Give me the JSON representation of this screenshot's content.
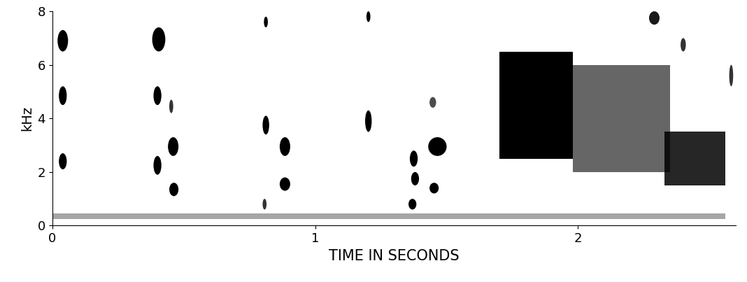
{
  "chart_data": {
    "type": "spectrogram",
    "x_label": "TIME IN SECONDS",
    "y_label": "kHz",
    "xlim": [
      0,
      2.6
    ],
    "xticks": [
      0,
      1,
      2
    ],
    "ylim": [
      0,
      8
    ],
    "yticks": [
      0,
      2,
      4,
      6,
      8
    ],
    "color": "#000000",
    "grid": false,
    "events": [
      {
        "shape": "blob",
        "t0": 0.02,
        "t1": 0.06,
        "f0": 6.5,
        "f1": 7.3,
        "level": 1.0
      },
      {
        "shape": "blob",
        "t0": 0.025,
        "t1": 0.055,
        "f0": 4.5,
        "f1": 5.2,
        "level": 1.0
      },
      {
        "shape": "blob",
        "t0": 0.025,
        "t1": 0.055,
        "f0": 2.1,
        "f1": 2.7,
        "level": 1.0
      },
      {
        "shape": "blob",
        "t0": 0.38,
        "t1": 0.43,
        "f0": 6.5,
        "f1": 7.4,
        "level": 1.0
      },
      {
        "shape": "blob",
        "t0": 0.385,
        "t1": 0.415,
        "f0": 4.5,
        "f1": 5.2,
        "level": 1.0
      },
      {
        "shape": "blob",
        "t0": 0.385,
        "t1": 0.415,
        "f0": 1.9,
        "f1": 2.6,
        "level": 1.0
      },
      {
        "shape": "blob",
        "t0": 0.44,
        "t1": 0.48,
        "f0": 2.6,
        "f1": 3.3,
        "level": 1.0
      },
      {
        "shape": "blob",
        "t0": 0.445,
        "t1": 0.48,
        "f0": 1.1,
        "f1": 1.6,
        "level": 1.0
      },
      {
        "shape": "blob",
        "t0": 0.445,
        "t1": 0.46,
        "f0": 4.2,
        "f1": 4.7,
        "level": 0.8
      },
      {
        "shape": "blob",
        "t0": 0.805,
        "t1": 0.82,
        "f0": 7.4,
        "f1": 7.8,
        "level": 1.0
      },
      {
        "shape": "blob",
        "t0": 0.8,
        "t1": 0.825,
        "f0": 3.4,
        "f1": 4.1,
        "level": 1.0
      },
      {
        "shape": "blob",
        "t0": 0.8,
        "t1": 0.815,
        "f0": 0.6,
        "f1": 1.0,
        "level": 0.8
      },
      {
        "shape": "blob",
        "t0": 0.865,
        "t1": 0.905,
        "f0": 2.6,
        "f1": 3.3,
        "level": 1.0
      },
      {
        "shape": "blob",
        "t0": 0.865,
        "t1": 0.905,
        "f0": 1.3,
        "f1": 1.8,
        "level": 1.0
      },
      {
        "shape": "blob",
        "t0": 1.195,
        "t1": 1.21,
        "f0": 7.6,
        "f1": 8.0,
        "level": 1.0
      },
      {
        "shape": "blob",
        "t0": 1.19,
        "t1": 1.215,
        "f0": 3.5,
        "f1": 4.3,
        "level": 1.0
      },
      {
        "shape": "blob",
        "t0": 1.36,
        "t1": 1.39,
        "f0": 2.2,
        "f1": 2.8,
        "level": 1.0
      },
      {
        "shape": "blob",
        "t0": 1.365,
        "t1": 1.395,
        "f0": 1.5,
        "f1": 2.0,
        "level": 1.0
      },
      {
        "shape": "blob",
        "t0": 1.355,
        "t1": 1.385,
        "f0": 0.6,
        "f1": 1.0,
        "level": 1.0
      },
      {
        "shape": "blob",
        "t0": 1.43,
        "t1": 1.5,
        "f0": 2.6,
        "f1": 3.3,
        "level": 1.0
      },
      {
        "shape": "blob",
        "t0": 1.435,
        "t1": 1.47,
        "f0": 1.2,
        "f1": 1.6,
        "level": 1.0
      },
      {
        "shape": "blob",
        "t0": 1.435,
        "t1": 1.46,
        "f0": 4.4,
        "f1": 4.8,
        "level": 0.7
      },
      {
        "shape": "noise",
        "t0": 1.7,
        "t1": 1.98,
        "f0": 2.5,
        "f1": 6.5,
        "level": 1.0
      },
      {
        "shape": "noise",
        "t0": 1.98,
        "t1": 2.35,
        "f0": 2.0,
        "f1": 6.0,
        "level": 0.6
      },
      {
        "shape": "noise",
        "t0": 2.33,
        "t1": 2.56,
        "f0": 1.5,
        "f1": 3.5,
        "level": 0.85
      },
      {
        "shape": "blob",
        "t0": 2.27,
        "t1": 2.31,
        "f0": 7.5,
        "f1": 8.0,
        "level": 0.9
      },
      {
        "shape": "blob",
        "t0": 2.39,
        "t1": 2.41,
        "f0": 6.5,
        "f1": 7.0,
        "level": 0.8
      },
      {
        "shape": "blob",
        "t0": 2.575,
        "t1": 2.59,
        "f0": 5.2,
        "f1": 6.0,
        "level": 0.8
      },
      {
        "shape": "noise",
        "t0": 0.0,
        "t1": 2.56,
        "f0": 0.25,
        "f1": 0.45,
        "level": 0.35
      }
    ]
  }
}
